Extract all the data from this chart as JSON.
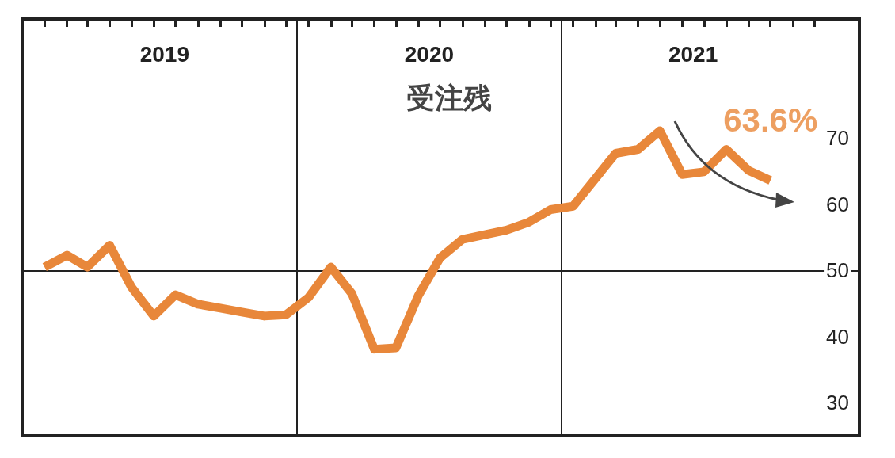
{
  "chart_data": {
    "type": "line",
    "title": "受注残",
    "x": [
      "2019-01",
      "2019-02",
      "2019-03",
      "2019-04",
      "2019-05",
      "2019-06",
      "2019-07",
      "2019-08",
      "2019-09",
      "2019-10",
      "2019-11",
      "2019-12",
      "2020-01",
      "2020-02",
      "2020-03",
      "2020-04",
      "2020-05",
      "2020-06",
      "2020-07",
      "2020-08",
      "2020-09",
      "2020-10",
      "2020-11",
      "2020-12",
      "2021-01",
      "2021-02",
      "2021-03",
      "2021-04",
      "2021-05",
      "2021-06",
      "2021-07",
      "2021-08",
      "2021-09",
      "2021-10"
    ],
    "series": [
      {
        "color": "#e8873a",
        "values": [
          50.5,
          52.3,
          50.5,
          53.8,
          47.5,
          43.1,
          46.3,
          44.9,
          44.3,
          43.7,
          43.1,
          43.3,
          45.9,
          50.5,
          46.5,
          38.1,
          38.3,
          46.2,
          51.9,
          54.7,
          55.4,
          56.1,
          57.3,
          59.2,
          59.7,
          63.9,
          67.7,
          68.3,
          71.1,
          64.5,
          64.9,
          68.3,
          65.1,
          63.6
        ]
      }
    ],
    "xlim": [
      "2018-12-01",
      "2022-02-01"
    ],
    "xticks": [
      {
        "value": "2019-01",
        "label": null
      },
      {
        "value": "2019-02",
        "label": null
      },
      {
        "value": "2019-03",
        "label": null
      },
      {
        "value": "2019-04",
        "label": null
      },
      {
        "value": "2019-05",
        "label": null
      },
      {
        "value": "2019-06",
        "label": null
      },
      {
        "value": "2019-07",
        "label": null
      },
      {
        "value": "2019-08",
        "label": null
      },
      {
        "value": "2019-09",
        "label": null
      },
      {
        "value": "2019-10",
        "label": null
      },
      {
        "value": "2019-11",
        "label": null
      },
      {
        "value": "2019-12",
        "label": null
      },
      {
        "value": "2020-01",
        "label": null
      },
      {
        "value": "2020-02",
        "label": null
      },
      {
        "value": "2020-03",
        "label": null
      },
      {
        "value": "2020-04",
        "label": null
      },
      {
        "value": "2020-05",
        "label": null
      },
      {
        "value": "2020-06",
        "label": null
      },
      {
        "value": "2020-07",
        "label": null
      },
      {
        "value": "2020-08",
        "label": null
      },
      {
        "value": "2020-09",
        "label": null
      },
      {
        "value": "2020-10",
        "label": null
      },
      {
        "value": "2020-11",
        "label": null
      },
      {
        "value": "2020-12",
        "label": null
      },
      {
        "value": "2021-01",
        "label": null
      },
      {
        "value": "2021-02",
        "label": null
      },
      {
        "value": "2021-03",
        "label": null
      },
      {
        "value": "2021-04",
        "label": null
      },
      {
        "value": "2021-05",
        "label": null
      },
      {
        "value": "2021-06",
        "label": null
      },
      {
        "value": "2021-07",
        "label": null
      },
      {
        "value": "2021-08",
        "label": null
      },
      {
        "value": "2021-09",
        "label": null
      },
      {
        "value": "2021-10",
        "label": null
      },
      {
        "value": "2021-11",
        "label": null
      },
      {
        "value": "2021-12",
        "label": null
      },
      {
        "value": "2019-06-16",
        "label": "2019"
      },
      {
        "value": "2020-06-16",
        "label": "2020"
      },
      {
        "value": "2021-06-16",
        "label": "2021"
      }
    ],
    "ylim": [
      25,
      88
    ],
    "yticks": [
      30,
      40,
      50,
      60,
      70
    ],
    "ref_lines": [
      {
        "axis": "x",
        "value": "2019-12-16",
        "color": "#222222"
      },
      {
        "axis": "x",
        "value": "2020-12-16",
        "color": "#222222"
      },
      {
        "axis": "y",
        "value": 50,
        "color": "#222222"
      }
    ],
    "annotations": [
      {
        "text": "63.6%",
        "x": "2021-10",
        "y": 63.6
      }
    ],
    "grid": false,
    "marker": "none",
    "line_style": "solid"
  }
}
